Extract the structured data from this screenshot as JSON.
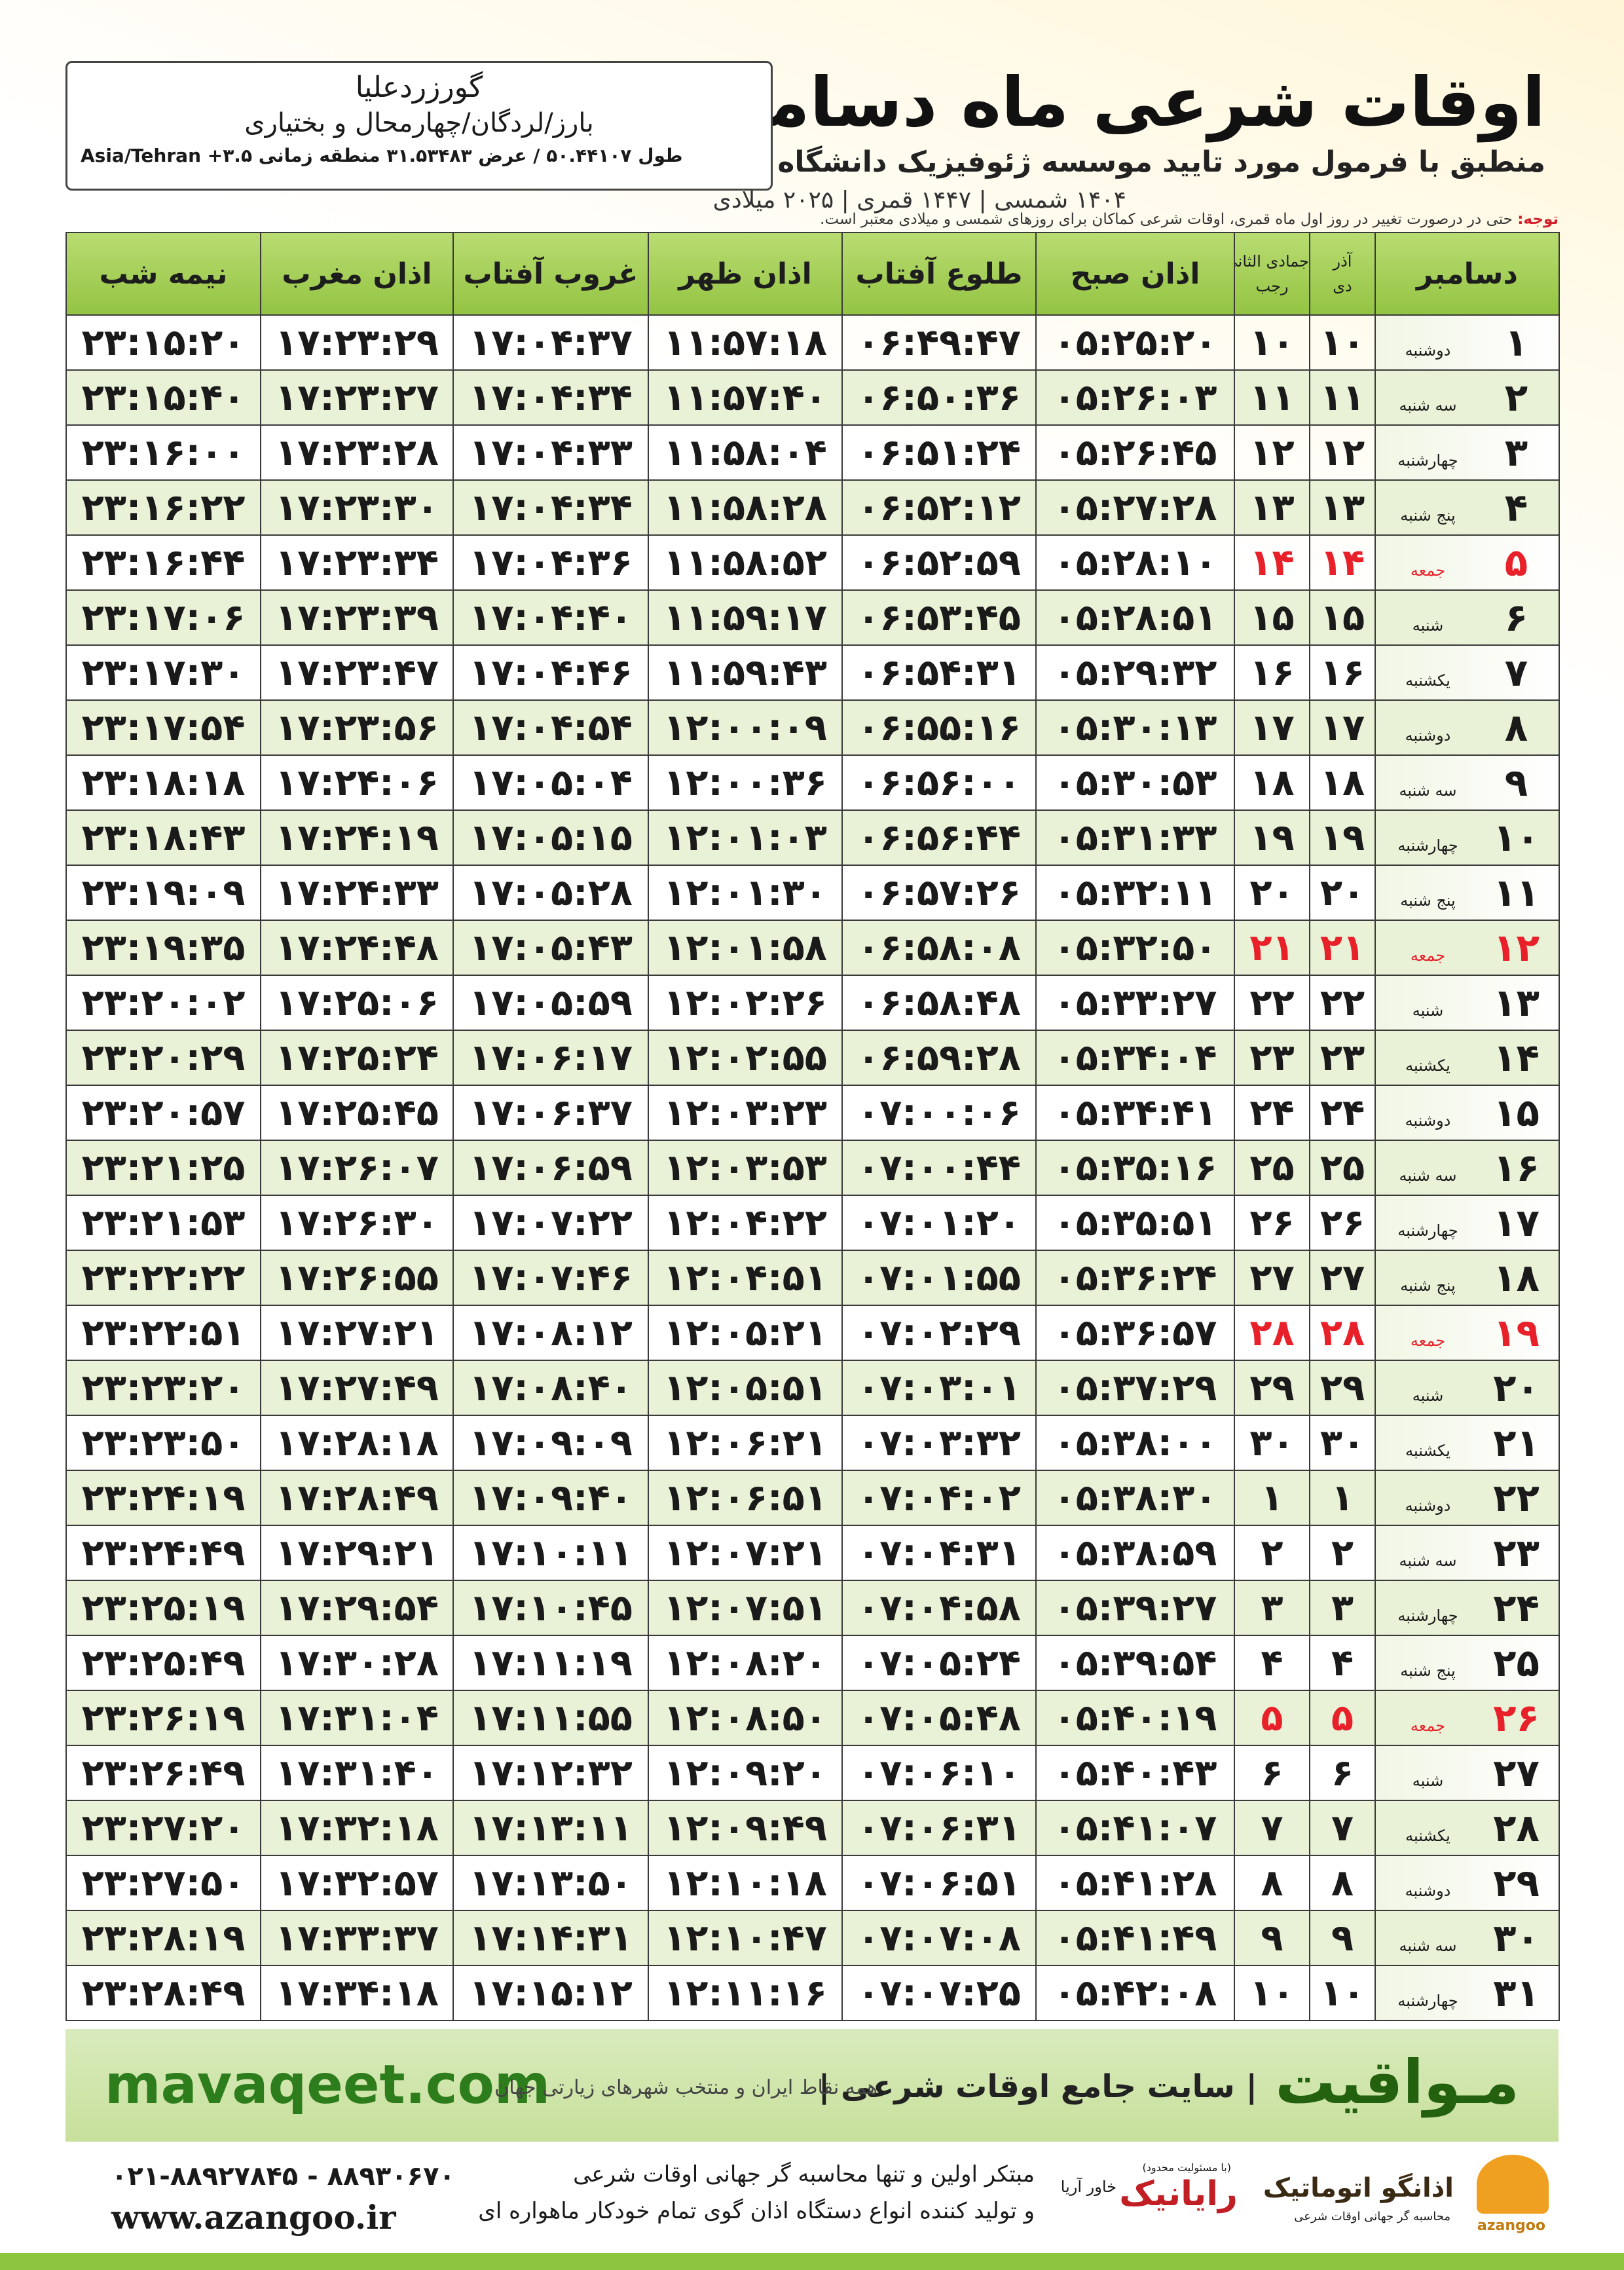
{
  "header": {
    "title": "اوقات شرعی ماه دسامبر",
    "subtitle": "منطبق با فرمول مورد تایید موسسه ژئوفیزیک دانشگاه تهران",
    "dates": "۱۴۰۴ شمسی | ۱۴۴۷ قمری | ۲۰۲۵ میلادی"
  },
  "location": {
    "name": "گورزردعلیا",
    "region": "بارز/لردگان/چهارمحال و بختیاری",
    "coordinates": "طول ۵۰.۴۴۱۰۷ / عرض ۳۱.۵۳۴۸۳ منطقه زمانی ۳.۵+ Asia/Tehran"
  },
  "note": {
    "label": "توجه:",
    "text": "حتی در درصورت تغییر در روز اول ماه قمری، اوقات شرعی کماکان برای روزهای شمسی و میلادی معتبر است."
  },
  "table": {
    "holiday_color": "#e8202a",
    "columns": [
      "دسامبر",
      {
        "top": "آذر",
        "bottom": "دی"
      },
      {
        "top": "جمادی الثانی",
        "bottom": "رجب"
      },
      "اذان صبح",
      "طلوع آفتاب",
      "اذان ظهر",
      "غروب آفتاب",
      "اذان مغرب",
      "نیمه شب"
    ],
    "rows": [
      {
        "cells": [
          "۱",
          "دوشنبه",
          "۱۰",
          "۱۰",
          "۰۵:۲۵:۲۰",
          "۰۶:۴۹:۴۷",
          "۱۱:۵۷:۱۸",
          "۱۷:۰۴:۳۷",
          "۱۷:۲۳:۲۹",
          "۲۳:۱۵:۲۰"
        ]
      },
      {
        "cells": [
          "۲",
          "سه شنبه",
          "۱۱",
          "۱۱",
          "۰۵:۲۶:۰۳",
          "۰۶:۵۰:۳۶",
          "۱۱:۵۷:۴۰",
          "۱۷:۰۴:۳۴",
          "۱۷:۲۳:۲۷",
          "۲۳:۱۵:۴۰"
        ]
      },
      {
        "cells": [
          "۳",
          "چهارشنبه",
          "۱۲",
          "۱۲",
          "۰۵:۲۶:۴۵",
          "۰۶:۵۱:۲۴",
          "۱۱:۵۸:۰۴",
          "۱۷:۰۴:۳۳",
          "۱۷:۲۳:۲۸",
          "۲۳:۱۶:۰۰"
        ]
      },
      {
        "cells": [
          "۴",
          "پنج شنبه",
          "۱۳",
          "۱۳",
          "۰۵:۲۷:۲۸",
          "۰۶:۵۲:۱۲",
          "۱۱:۵۸:۲۸",
          "۱۷:۰۴:۳۴",
          "۱۷:۲۳:۳۰",
          "۲۳:۱۶:۲۲"
        ]
      },
      {
        "cells": [
          "۵",
          "جمعه",
          "۱۴",
          "۱۴",
          "۰۵:۲۸:۱۰",
          "۰۶:۵۲:۵۹",
          "۱۱:۵۸:۵۲",
          "۱۷:۰۴:۳۶",
          "۱۷:۲۳:۳۴",
          "۲۳:۱۶:۴۴"
        ],
        "holiday": true
      },
      {
        "cells": [
          "۶",
          "شنبه",
          "۱۵",
          "۱۵",
          "۰۵:۲۸:۵۱",
          "۰۶:۵۳:۴۵",
          "۱۱:۵۹:۱۷",
          "۱۷:۰۴:۴۰",
          "۱۷:۲۳:۳۹",
          "۲۳:۱۷:۰۶"
        ]
      },
      {
        "cells": [
          "۷",
          "یکشنبه",
          "۱۶",
          "۱۶",
          "۰۵:۲۹:۳۲",
          "۰۶:۵۴:۳۱",
          "۱۱:۵۹:۴۳",
          "۱۷:۰۴:۴۶",
          "۱۷:۲۳:۴۷",
          "۲۳:۱۷:۳۰"
        ]
      },
      {
        "cells": [
          "۸",
          "دوشنبه",
          "۱۷",
          "۱۷",
          "۰۵:۳۰:۱۳",
          "۰۶:۵۵:۱۶",
          "۱۲:۰۰:۰۹",
          "۱۷:۰۴:۵۴",
          "۱۷:۲۳:۵۶",
          "۲۳:۱۷:۵۴"
        ]
      },
      {
        "cells": [
          "۹",
          "سه شنبه",
          "۱۸",
          "۱۸",
          "۰۵:۳۰:۵۳",
          "۰۶:۵۶:۰۰",
          "۱۲:۰۰:۳۶",
          "۱۷:۰۵:۰۴",
          "۱۷:۲۴:۰۶",
          "۲۳:۱۸:۱۸"
        ]
      },
      {
        "cells": [
          "۱۰",
          "چهارشنبه",
          "۱۹",
          "۱۹",
          "۰۵:۳۱:۳۳",
          "۰۶:۵۶:۴۴",
          "۱۲:۰۱:۰۳",
          "۱۷:۰۵:۱۵",
          "۱۷:۲۴:۱۹",
          "۲۳:۱۸:۴۳"
        ]
      },
      {
        "cells": [
          "۱۱",
          "پنج شنبه",
          "۲۰",
          "۲۰",
          "۰۵:۳۲:۱۱",
          "۰۶:۵۷:۲۶",
          "۱۲:۰۱:۳۰",
          "۱۷:۰۵:۲۸",
          "۱۷:۲۴:۳۳",
          "۲۳:۱۹:۰۹"
        ]
      },
      {
        "cells": [
          "۱۲",
          "جمعه",
          "۲۱",
          "۲۱",
          "۰۵:۳۲:۵۰",
          "۰۶:۵۸:۰۸",
          "۱۲:۰۱:۵۸",
          "۱۷:۰۵:۴۳",
          "۱۷:۲۴:۴۸",
          "۲۳:۱۹:۳۵"
        ],
        "holiday": true
      },
      {
        "cells": [
          "۱۳",
          "شنبه",
          "۲۲",
          "۲۲",
          "۰۵:۳۳:۲۷",
          "۰۶:۵۸:۴۸",
          "۱۲:۰۲:۲۶",
          "۱۷:۰۵:۵۹",
          "۱۷:۲۵:۰۶",
          "۲۳:۲۰:۰۲"
        ]
      },
      {
        "cells": [
          "۱۴",
          "یکشنبه",
          "۲۳",
          "۲۳",
          "۰۵:۳۴:۰۴",
          "۰۶:۵۹:۲۸",
          "۱۲:۰۲:۵۵",
          "۱۷:۰۶:۱۷",
          "۱۷:۲۵:۲۴",
          "۲۳:۲۰:۲۹"
        ]
      },
      {
        "cells": [
          "۱۵",
          "دوشنبه",
          "۲۴",
          "۲۴",
          "۰۵:۳۴:۴۱",
          "۰۷:۰۰:۰۶",
          "۱۲:۰۳:۲۳",
          "۱۷:۰۶:۳۷",
          "۱۷:۲۵:۴۵",
          "۲۳:۲۰:۵۷"
        ]
      },
      {
        "cells": [
          "۱۶",
          "سه شنبه",
          "۲۵",
          "۲۵",
          "۰۵:۳۵:۱۶",
          "۰۷:۰۰:۴۴",
          "۱۲:۰۳:۵۳",
          "۱۷:۰۶:۵۹",
          "۱۷:۲۶:۰۷",
          "۲۳:۲۱:۲۵"
        ]
      },
      {
        "cells": [
          "۱۷",
          "چهارشنبه",
          "۲۶",
          "۲۶",
          "۰۵:۳۵:۵۱",
          "۰۷:۰۱:۲۰",
          "۱۲:۰۴:۲۲",
          "۱۷:۰۷:۲۲",
          "۱۷:۲۶:۳۰",
          "۲۳:۲۱:۵۳"
        ]
      },
      {
        "cells": [
          "۱۸",
          "پنج شنبه",
          "۲۷",
          "۲۷",
          "۰۵:۳۶:۲۴",
          "۰۷:۰۱:۵۵",
          "۱۲:۰۴:۵۱",
          "۱۷:۰۷:۴۶",
          "۱۷:۲۶:۵۵",
          "۲۳:۲۲:۲۲"
        ]
      },
      {
        "cells": [
          "۱۹",
          "جمعه",
          "۲۸",
          "۲۸",
          "۰۵:۳۶:۵۷",
          "۰۷:۰۲:۲۹",
          "۱۲:۰۵:۲۱",
          "۱۷:۰۸:۱۲",
          "۱۷:۲۷:۲۱",
          "۲۳:۲۲:۵۱"
        ],
        "holiday": true
      },
      {
        "cells": [
          "۲۰",
          "شنبه",
          "۲۹",
          "۲۹",
          "۰۵:۳۷:۲۹",
          "۰۷:۰۳:۰۱",
          "۱۲:۰۵:۵۱",
          "۱۷:۰۸:۴۰",
          "۱۷:۲۷:۴۹",
          "۲۳:۲۳:۲۰"
        ]
      },
      {
        "cells": [
          "۲۱",
          "یکشنبه",
          "۳۰",
          "۳۰",
          "۰۵:۳۸:۰۰",
          "۰۷:۰۳:۳۲",
          "۱۲:۰۶:۲۱",
          "۱۷:۰۹:۰۹",
          "۱۷:۲۸:۱۸",
          "۲۳:۲۳:۵۰"
        ]
      },
      {
        "cells": [
          "۲۲",
          "دوشنبه",
          "۱",
          "۱",
          "۰۵:۳۸:۳۰",
          "۰۷:۰۴:۰۲",
          "۱۲:۰۶:۵۱",
          "۱۷:۰۹:۴۰",
          "۱۷:۲۸:۴۹",
          "۲۳:۲۴:۱۹"
        ]
      },
      {
        "cells": [
          "۲۳",
          "سه شنبه",
          "۲",
          "۲",
          "۰۵:۳۸:۵۹",
          "۰۷:۰۴:۳۱",
          "۱۲:۰۷:۲۱",
          "۱۷:۱۰:۱۱",
          "۱۷:۲۹:۲۱",
          "۲۳:۲۴:۴۹"
        ]
      },
      {
        "cells": [
          "۲۴",
          "چهارشنبه",
          "۳",
          "۳",
          "۰۵:۳۹:۲۷",
          "۰۷:۰۴:۵۸",
          "۱۲:۰۷:۵۱",
          "۱۷:۱۰:۴۵",
          "۱۷:۲۹:۵۴",
          "۲۳:۲۵:۱۹"
        ]
      },
      {
        "cells": [
          "۲۵",
          "پنج شنبه",
          "۴",
          "۴",
          "۰۵:۳۹:۵۴",
          "۰۷:۰۵:۲۴",
          "۱۲:۰۸:۲۰",
          "۱۷:۱۱:۱۹",
          "۱۷:۳۰:۲۸",
          "۲۳:۲۵:۴۹"
        ]
      },
      {
        "cells": [
          "۲۶",
          "جمعه",
          "۵",
          "۵",
          "۰۵:۴۰:۱۹",
          "۰۷:۰۵:۴۸",
          "۱۲:۰۸:۵۰",
          "۱۷:۱۱:۵۵",
          "۱۷:۳۱:۰۴",
          "۲۳:۲۶:۱۹"
        ],
        "holiday": true
      },
      {
        "cells": [
          "۲۷",
          "شنبه",
          "۶",
          "۶",
          "۰۵:۴۰:۴۳",
          "۰۷:۰۶:۱۰",
          "۱۲:۰۹:۲۰",
          "۱۷:۱۲:۳۲",
          "۱۷:۳۱:۴۰",
          "۲۳:۲۶:۴۹"
        ]
      },
      {
        "cells": [
          "۲۸",
          "یکشنبه",
          "۷",
          "۷",
          "۰۵:۴۱:۰۷",
          "۰۷:۰۶:۳۱",
          "۱۲:۰۹:۴۹",
          "۱۷:۱۳:۱۱",
          "۱۷:۳۲:۱۸",
          "۲۳:۲۷:۲۰"
        ]
      },
      {
        "cells": [
          "۲۹",
          "دوشنبه",
          "۸",
          "۸",
          "۰۵:۴۱:۲۸",
          "۰۷:۰۶:۵۱",
          "۱۲:۱۰:۱۸",
          "۱۷:۱۳:۵۰",
          "۱۷:۳۲:۵۷",
          "۲۳:۲۷:۵۰"
        ]
      },
      {
        "cells": [
          "۳۰",
          "سه شنبه",
          "۹",
          "۹",
          "۰۵:۴۱:۴۹",
          "۰۷:۰۷:۰۸",
          "۱۲:۱۰:۴۷",
          "۱۷:۱۴:۳۱",
          "۱۷:۳۳:۳۷",
          "۲۳:۲۸:۱۹"
        ]
      },
      {
        "cells": [
          "۳۱",
          "چهارشنبه",
          "۱۰",
          "۱۰",
          "۰۵:۴۲:۰۸",
          "۰۷:۰۷:۲۵",
          "۱۲:۱۱:۱۶",
          "۱۷:۱۵:۱۲",
          "۱۷:۳۴:۱۸",
          "۲۳:۲۸:۴۹"
        ]
      }
    ]
  },
  "banner": {
    "url": "mavaqeet.com",
    "brand": "مـواقیت",
    "slogan": "| سایت جامع اوقات شرعی |",
    "tagline": "همه نقاط ایران و منتخب شهرهای زیارتی جهان"
  },
  "footer": {
    "phone": "۰۲۱-۸۸۹۲۷۸۴۵ - ۸۸۹۳۰۶۷۰",
    "website": "www.azangoo.ir",
    "line1": "مبتکر اولین و تنها محاسبه گر جهانی اوقات شرعی",
    "line2": "و تولید کننده انواع دستگاه اذان گوی تمام خودکار ماهواره ای",
    "company": "رایانیک",
    "company_sub": "خاور آریا",
    "company_note": "(با مسئولیت محدود)",
    "logo": "اذانگو اتوماتیک",
    "logo_sub": "محاسبه گر جهانی اوقات شرعی",
    "logo_latin": "azangoo"
  }
}
